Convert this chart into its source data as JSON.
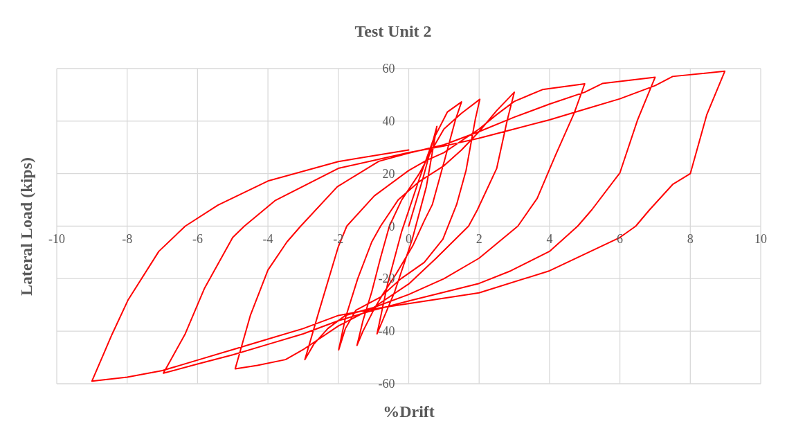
{
  "chart_data": {
    "type": "line",
    "title": "Test Unit 2",
    "xlabel": "%Drift",
    "ylabel": "Lateral Load (kips)",
    "x": [
      0,
      0.4,
      0.8,
      0.5,
      0.1,
      -0.4,
      -0.9,
      -0.6,
      -0.2,
      0.3,
      0.7,
      1.1,
      1.5,
      1.33,
      1.03,
      0.67,
      0.44,
      0.11,
      -0.35,
      -0.74,
      -1.0,
      -1.3,
      -1.47,
      -1.3,
      -1.05,
      -0.8,
      -0.55,
      -0.2,
      0.3,
      0.7,
      1.0,
      1.5,
      2.02,
      1.89,
      1.63,
      1.36,
      0.97,
      0.44,
      -0.22,
      -0.8,
      -1.5,
      -1.8,
      -1.99,
      -1.8,
      -1.45,
      -1.05,
      -0.8,
      -0.3,
      0.3,
      1,
      1.5,
      2,
      2.5,
      3,
      2.8,
      2.5,
      1.95,
      1.7,
      0.78,
      0,
      -1,
      -1.8,
      -2.3,
      -2.7,
      -2.95,
      -2.55,
      -2,
      -1.76,
      -0.98,
      0,
      0.5,
      1,
      1.5,
      2,
      2.5,
      3,
      3.8,
      5,
      4.7,
      4.17,
      3.65,
      3.1,
      2,
      1,
      0,
      -1,
      -2,
      -3,
      -3.5,
      -4.3,
      -4.93,
      -4.5,
      -4,
      -3.46,
      -3.07,
      -2.03,
      -0.85,
      0,
      1,
      2,
      3,
      4,
      5,
      5.5,
      7,
      6.5,
      6,
      5.2,
      4.8,
      4,
      2.9,
      2,
      0,
      -1,
      -2,
      -3,
      -4,
      -5,
      -6,
      -6.97,
      -6.35,
      -5.8,
      -5,
      -4.67,
      -3.8,
      -2,
      0,
      1,
      2,
      3,
      4,
      5,
      6,
      7,
      7.5,
      8.98,
      8.47,
      8,
      7.5,
      6.84,
      6.45,
      6,
      4,
      2,
      0,
      -1,
      -2,
      -3,
      -4,
      -5,
      -6,
      -7,
      -8,
      -9,
      -8.43,
      -7.97,
      -7.1,
      -6.35,
      -5.42,
      -4,
      -2,
      0
    ],
    "series": [
      {
        "color": "#ff0000",
        "values": [
          0,
          18,
          38,
          15,
          -5,
          -25,
          -41,
          -22,
          -2,
          18,
          33,
          43.5,
          47.3,
          40.6,
          25.7,
          8.2,
          2,
          -7.6,
          -18,
          -26,
          -32,
          -40,
          -45.4,
          -36,
          -25,
          -12,
          0,
          10,
          20,
          30,
          37,
          43,
          48.3,
          40.6,
          21.3,
          8.2,
          -5,
          -13.8,
          -20,
          -27,
          -32,
          -39,
          -47.1,
          -35,
          -20,
          -6,
          0,
          10,
          17,
          23,
          29,
          36,
          44,
          51,
          40.4,
          22,
          6.2,
          0,
          -12.2,
          -22,
          -31,
          -34,
          -39,
          -45,
          -50.8,
          -32.4,
          -7.8,
          0,
          11.5,
          21.2,
          25,
          28,
          32.5,
          37,
          42.5,
          47.5,
          52,
          54.2,
          43,
          27,
          10.6,
          0,
          -12.2,
          -20,
          -26,
          -31,
          -38,
          -47,
          -50.8,
          -53,
          -54.3,
          -34,
          -16.7,
          -6,
          0,
          15,
          24.7,
          27.8,
          31,
          36,
          41.5,
          46.5,
          51,
          54.3,
          56.7,
          40.4,
          20.3,
          6.2,
          0,
          -9.6,
          -17,
          -21.8,
          -28.5,
          -32,
          -36,
          -41,
          -45,
          -49,
          -52.5,
          -56,
          -41,
          -23.6,
          -4.3,
          0,
          9.7,
          22,
          28,
          30.5,
          33.5,
          37,
          40.5,
          44.5,
          48.5,
          53.5,
          57,
          59,
          42.5,
          20,
          15.9,
          6.2,
          0,
          -4.3,
          -17,
          -25.4,
          -29.5,
          -31.5,
          -34,
          -39,
          -43,
          -47,
          -51,
          -55,
          -57.5,
          -59,
          -41.2,
          -28,
          -9.6,
          0,
          8,
          17.2,
          24.6,
          29
        ]
      }
    ],
    "xlim": [
      -10,
      10
    ],
    "xticks": [
      -10,
      -8,
      -6,
      -4,
      -2,
      0,
      2,
      4,
      6,
      8,
      10
    ],
    "ylim": [
      -60,
      60
    ],
    "yticks": [
      -60,
      -40,
      -20,
      0,
      20,
      40,
      60
    ],
    "grid": true,
    "marker": "none"
  }
}
